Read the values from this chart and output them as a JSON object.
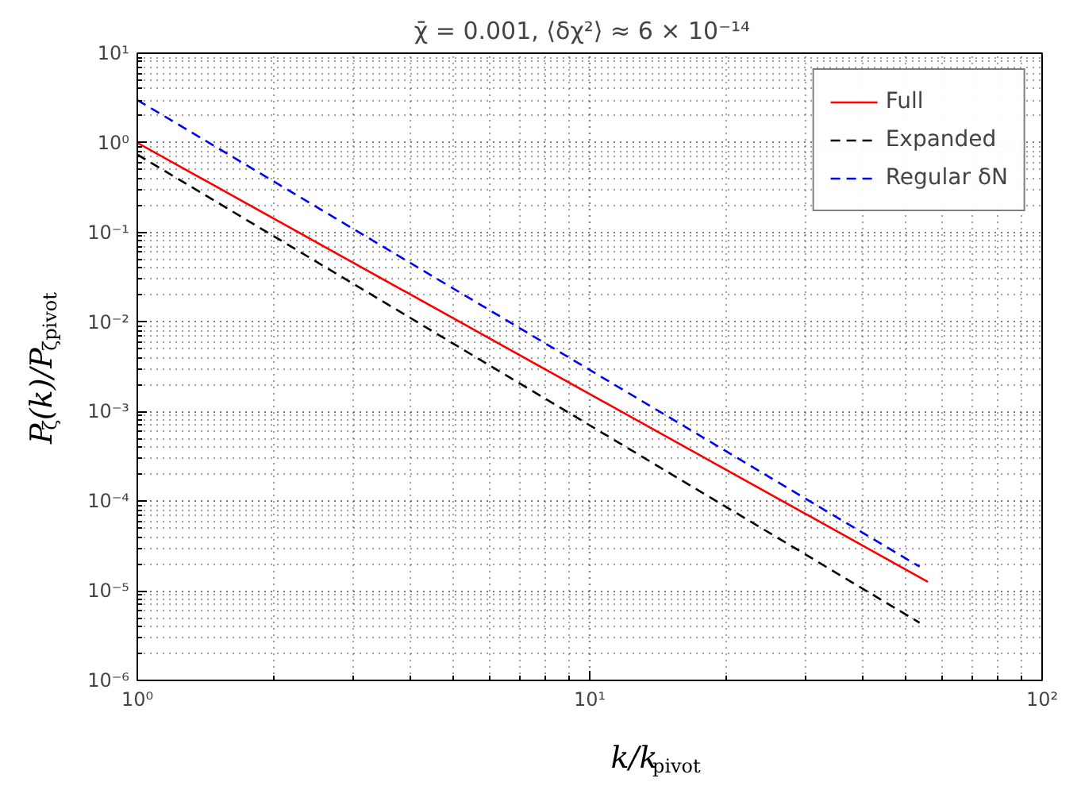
{
  "chart_data": {
    "type": "line",
    "title": "χ̄ = 0.001,   ⟨δχ²⟩ ≈ 6 × 10⁻¹⁴",
    "xlabel": "k/k$_{pivot}$",
    "ylabel": "P$_{ζ}$(k)/P$_{ζpivot}$",
    "log": "xy",
    "grid": true,
    "legend": "top right",
    "xlim": [
      1,
      100
    ],
    "ylim": [
      1e-06,
      10
    ],
    "xticks": [
      {
        "value": 1,
        "label": "10⁰"
      },
      {
        "value": 10,
        "label": "10¹"
      },
      {
        "value": 100,
        "label": "10²"
      }
    ],
    "yticks": [
      {
        "value": 1e-06,
        "label": "10⁻⁶"
      },
      {
        "value": 1e-05,
        "label": "10⁻⁵"
      },
      {
        "value": 0.0001,
        "label": "10⁻⁴"
      },
      {
        "value": 0.001,
        "label": "10⁻³"
      },
      {
        "value": 0.01,
        "label": "10⁻²"
      },
      {
        "value": 0.1,
        "label": "10⁻¹"
      },
      {
        "value": 1,
        "label": "10⁰"
      },
      {
        "value": 10,
        "label": "10¹"
      }
    ],
    "series": [
      {
        "name": "Full",
        "color": "#ff0000",
        "line_style": "solid",
        "x": [
          1,
          55.9
        ],
        "values": [
          1.0,
          1.26e-05
        ]
      },
      {
        "name": "Expanded",
        "color": "#000000",
        "line_style": "dashed",
        "x": [
          1,
          53.6
        ],
        "values": [
          0.74,
          4.4e-06
        ]
      },
      {
        "name": "Regular δN",
        "color": "#0000ff",
        "line_style": "dashed",
        "x": [
          1,
          53.6
        ],
        "values": [
          3.0,
          1.86e-05
        ]
      }
    ]
  }
}
